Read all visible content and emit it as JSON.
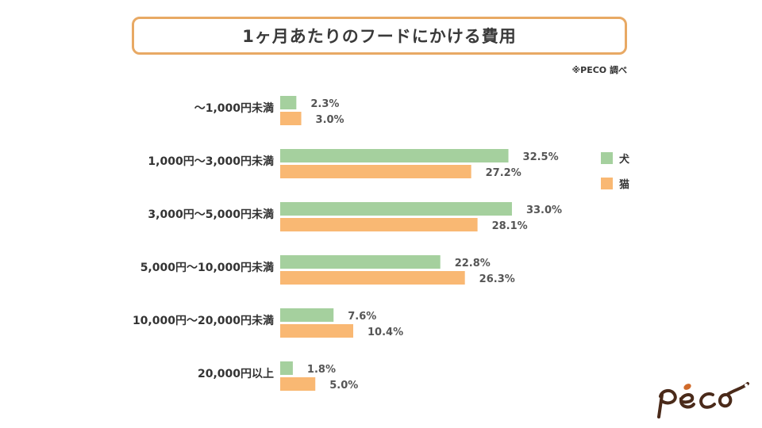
{
  "chart_data": {
    "type": "bar",
    "orientation": "horizontal",
    "title": "1ヶ月あたりのフードにかける費用",
    "source_note": "※PECO 調べ",
    "categories": [
      "～1,000円未満",
      "1,000円～3,000円未満",
      "3,000円～5,000円未満",
      "5,000円～10,000円未満",
      "10,000円～20,000円未満",
      "20,000円以上"
    ],
    "series": [
      {
        "name": "犬",
        "color": "#A5D09E",
        "values": [
          2.3,
          32.5,
          33.0,
          22.8,
          7.6,
          1.8
        ]
      },
      {
        "name": "猫",
        "color": "#F9B873",
        "values": [
          3.0,
          27.2,
          28.1,
          26.3,
          10.4,
          5.0
        ]
      }
    ],
    "value_suffix": "%",
    "xlim": [
      0,
      37.3
    ],
    "legend_position": "right",
    "grid": false
  },
  "brand": {
    "logo_text": "peco",
    "logo_color": "#4a2a1a",
    "accent": "#E8A964"
  }
}
